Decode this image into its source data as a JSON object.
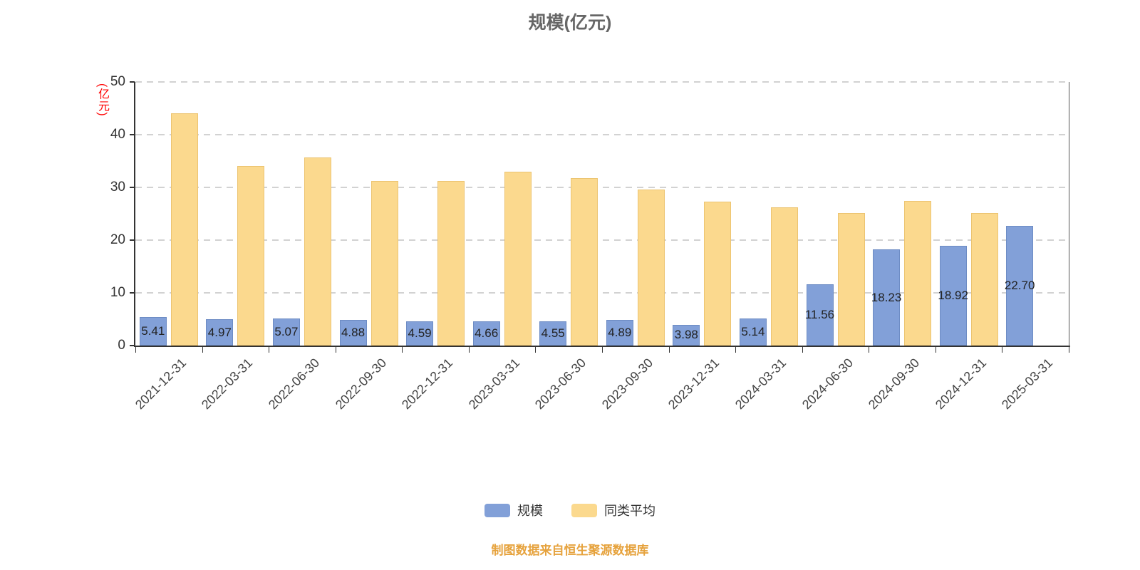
{
  "chart_data": {
    "type": "bar",
    "title": "规模(亿元)",
    "ylabel": "(亿元)",
    "xlabel": "",
    "ylim": [
      0,
      50
    ],
    "yticks": [
      0,
      10,
      20,
      30,
      40,
      50
    ],
    "grid": "dashed-horizontal",
    "legend_position": "bottom",
    "categories": [
      "2021-12-31",
      "2022-03-31",
      "2022-06-30",
      "2022-09-30",
      "2022-12-31",
      "2023-03-31",
      "2023-06-30",
      "2023-09-30",
      "2023-12-31",
      "2024-03-31",
      "2024-06-30",
      "2024-09-30",
      "2024-12-31",
      "2025-03-31"
    ],
    "series": [
      {
        "name": "规模",
        "color": "#82a0d8",
        "border": "#6d8cc4",
        "values": [
          5.41,
          4.97,
          5.07,
          4.88,
          4.59,
          4.66,
          4.55,
          4.89,
          3.98,
          5.14,
          11.56,
          18.23,
          18.92,
          22.7
        ],
        "labels": [
          "5.41",
          "4.97",
          "5.07",
          "4.88",
          "4.59",
          "4.66",
          "4.55",
          "4.89",
          "3.98",
          "5.14",
          "11.56",
          "18.23",
          "18.92",
          "22.70"
        ]
      },
      {
        "name": "同类平均",
        "color": "#fbd98e",
        "border": "#ecc471",
        "values": [
          44.0,
          34.0,
          35.7,
          31.2,
          31.2,
          33.0,
          31.7,
          29.6,
          27.3,
          26.2,
          25.2,
          27.5,
          25.1,
          null
        ],
        "labels": null
      }
    ]
  },
  "footer": {
    "source_text": "制图数据来自恒生聚源数据库"
  },
  "colors": {
    "background": "#ffffff",
    "title": "#666666",
    "axis": "#333333",
    "grid": "#d2d2d2",
    "y_unit_label": "#ff0000",
    "value_label": "#222222",
    "footer": "#e6a23c"
  }
}
